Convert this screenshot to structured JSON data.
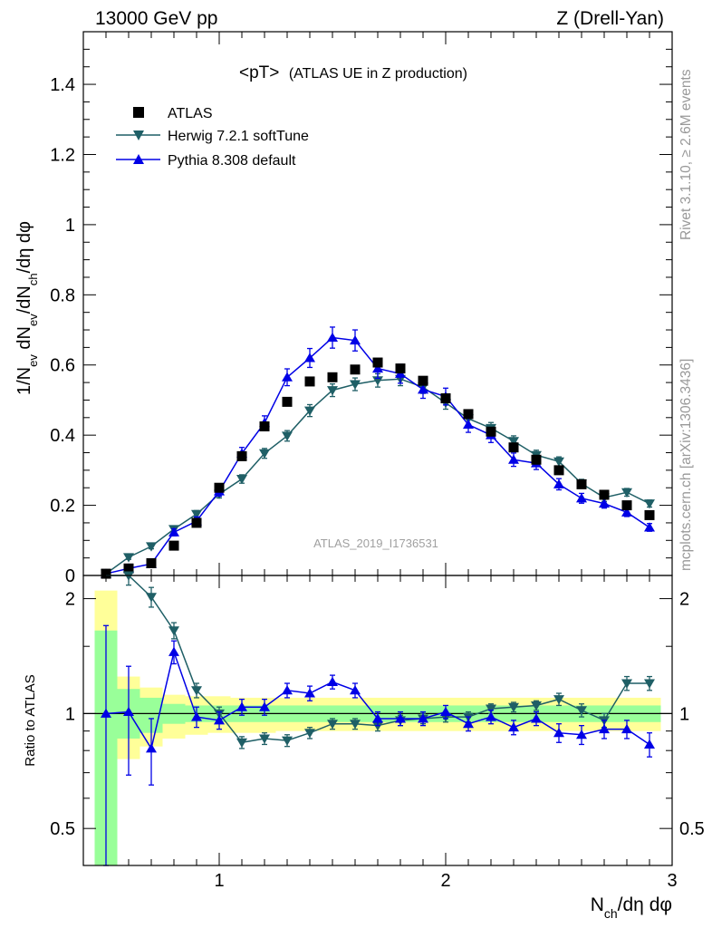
{
  "header": {
    "energy_label": "13000 GeV pp",
    "process_label": "Z (Drell-Yan)",
    "plot_title": "<pT>",
    "plot_subtitle": "(ATLAS UE in Z production)",
    "analysis_label": "ATLAS_2019_I1736531"
  },
  "side_labels": {
    "rivet": "Rivet 3.1.10, ≥ 2.6M events",
    "mcplots": "mcplots.cern.ch [arXiv:1306.3436]"
  },
  "axes": {
    "ylabel_main": "1/N_ev dN_ev/dN_ch/dη dφ",
    "ylabel_ratio": "Ratio to ATLAS",
    "xlabel": "N_ch/dη dφ"
  },
  "colors": {
    "data": "#000000",
    "herwig": "#1f5f66",
    "pythia": "#0000e6",
    "band_inner": "#99ff99",
    "band_outer": "#ffff99"
  },
  "chart_data": {
    "type": "line",
    "x": [
      0.5,
      0.6,
      0.7,
      0.8,
      0.9,
      1.0,
      1.1,
      1.2,
      1.3,
      1.4,
      1.5,
      1.6,
      1.7,
      1.8,
      1.9,
      2.0,
      2.1,
      2.2,
      2.3,
      2.4,
      2.5,
      2.6,
      2.7,
      2.8,
      2.9
    ],
    "main_panel": {
      "xlim": [
        0.4,
        3.0
      ],
      "ylim": [
        0,
        1.55
      ],
      "yticks": [
        0,
        0.2,
        0.4,
        0.6,
        0.8,
        1,
        1.2,
        1.4
      ],
      "ytick_labels": [
        "0",
        "0.2",
        "0.4",
        "0.6",
        "0.8",
        "1",
        "1.2",
        "1.4"
      ],
      "series": [
        {
          "name": "ATLAS",
          "marker": "square",
          "values": [
            0.005,
            0.02,
            0.035,
            0.085,
            0.15,
            0.25,
            0.34,
            0.425,
            0.495,
            0.553,
            0.565,
            0.587,
            0.607,
            0.59,
            0.555,
            0.505,
            0.46,
            0.41,
            0.365,
            0.33,
            0.3,
            0.26,
            0.23,
            0.2,
            0.172
          ]
        },
        {
          "name": "Herwig 7.2.1 softTune",
          "marker": "triangle-down",
          "values": [
            0.005,
            0.052,
            0.083,
            0.132,
            0.175,
            0.232,
            0.275,
            0.348,
            0.398,
            0.47,
            0.528,
            0.545,
            0.556,
            0.56,
            0.537,
            0.492,
            0.447,
            0.42,
            0.383,
            0.343,
            0.325,
            0.262,
            0.222,
            0.237,
            0.205
          ]
        },
        {
          "name": "Pythia 8.308 default",
          "marker": "triangle-up",
          "values": [
            0.005,
            0.02,
            0.033,
            0.123,
            0.155,
            0.24,
            0.348,
            0.435,
            0.565,
            0.62,
            0.678,
            0.67,
            0.59,
            0.575,
            0.53,
            0.51,
            0.43,
            0.4,
            0.33,
            0.32,
            0.26,
            0.22,
            0.205,
            0.18,
            0.137
          ]
        }
      ],
      "errors": {
        "herwig": [
          0.004,
          0.006,
          0.007,
          0.008,
          0.01,
          0.011,
          0.012,
          0.014,
          0.015,
          0.017,
          0.018,
          0.018,
          0.019,
          0.019,
          0.018,
          0.018,
          0.017,
          0.016,
          0.015,
          0.014,
          0.013,
          0.012,
          0.011,
          0.011,
          0.01
        ],
        "pythia": [
          0.004,
          0.006,
          0.007,
          0.01,
          0.012,
          0.014,
          0.017,
          0.02,
          0.024,
          0.027,
          0.03,
          0.03,
          0.028,
          0.027,
          0.025,
          0.024,
          0.022,
          0.021,
          0.019,
          0.018,
          0.016,
          0.014,
          0.013,
          0.012,
          0.011
        ]
      }
    },
    "ratio_panel": {
      "ylim": [
        0.4,
        2.3
      ],
      "log_scale": true,
      "yticks": [
        0.5,
        1,
        2
      ],
      "ytick_labels": [
        "0.5",
        "1",
        "2"
      ],
      "reference": 1,
      "series": [
        {
          "name": "Herwig 7.2.1 softTune",
          "values": [
            null,
            2.32,
            2.02,
            1.65,
            1.15,
            1.0,
            0.84,
            0.86,
            0.85,
            0.89,
            0.94,
            0.94,
            0.93,
            0.96,
            0.97,
            0.98,
            0.98,
            1.03,
            1.04,
            1.05,
            1.09,
            1.02,
            0.96,
            1.2,
            1.2
          ],
          "errors": [
            null,
            0.15,
            0.12,
            0.08,
            0.05,
            0.04,
            0.03,
            0.03,
            0.03,
            0.03,
            0.03,
            0.03,
            0.03,
            0.03,
            0.03,
            0.03,
            0.03,
            0.03,
            0.03,
            0.03,
            0.04,
            0.04,
            0.04,
            0.05,
            0.05
          ]
        },
        {
          "name": "Pythia 8.308 default",
          "values": [
            1.0,
            1.01,
            0.81,
            1.45,
            0.98,
            0.96,
            1.04,
            1.04,
            1.15,
            1.13,
            1.21,
            1.15,
            0.97,
            0.97,
            0.97,
            1.01,
            0.94,
            0.98,
            0.92,
            0.97,
            0.89,
            0.88,
            0.91,
            0.91,
            0.83
          ]
        },
        {
          "name": "Pythia 8.308 default error",
          "values": [
            0.7,
            0.32,
            0.16,
            0.1,
            0.06,
            0.05,
            0.05,
            0.05,
            0.05,
            0.05,
            0.05,
            0.05,
            0.04,
            0.04,
            0.04,
            0.04,
            0.04,
            0.04,
            0.04,
            0.04,
            0.05,
            0.05,
            0.05,
            0.05,
            0.06
          ]
        }
      ],
      "bands": {
        "inner_lo": [
          0.36,
          0.86,
          0.89,
          0.94,
          0.95,
          0.95,
          0.95,
          0.95,
          0.95,
          0.95,
          0.95,
          0.95,
          0.95,
          0.95,
          0.95,
          0.95,
          0.95,
          0.95,
          0.95,
          0.95,
          0.95,
          0.95,
          0.95,
          0.95,
          0.95
        ],
        "inner_hi": [
          1.65,
          1.16,
          1.1,
          1.06,
          1.05,
          1.05,
          1.05,
          1.05,
          1.05,
          1.05,
          1.05,
          1.05,
          1.05,
          1.05,
          1.05,
          1.05,
          1.05,
          1.05,
          1.05,
          1.05,
          1.05,
          1.05,
          1.05,
          1.05,
          1.05
        ],
        "outer_lo": [
          0.34,
          0.76,
          0.82,
          0.86,
          0.88,
          0.89,
          0.89,
          0.89,
          0.9,
          0.9,
          0.9,
          0.9,
          0.9,
          0.9,
          0.9,
          0.9,
          0.9,
          0.9,
          0.9,
          0.9,
          0.9,
          0.9,
          0.9,
          0.9,
          0.9
        ],
        "outer_hi": [
          2.1,
          1.25,
          1.17,
          1.12,
          1.11,
          1.11,
          1.1,
          1.1,
          1.1,
          1.1,
          1.1,
          1.1,
          1.1,
          1.1,
          1.1,
          1.1,
          1.1,
          1.1,
          1.1,
          1.1,
          1.1,
          1.1,
          1.1,
          1.1,
          1.1
        ]
      }
    },
    "xticks": [
      1,
      2,
      3
    ],
    "xtick_labels": [
      "1",
      "2",
      "3"
    ],
    "legend_position": "top-left"
  }
}
